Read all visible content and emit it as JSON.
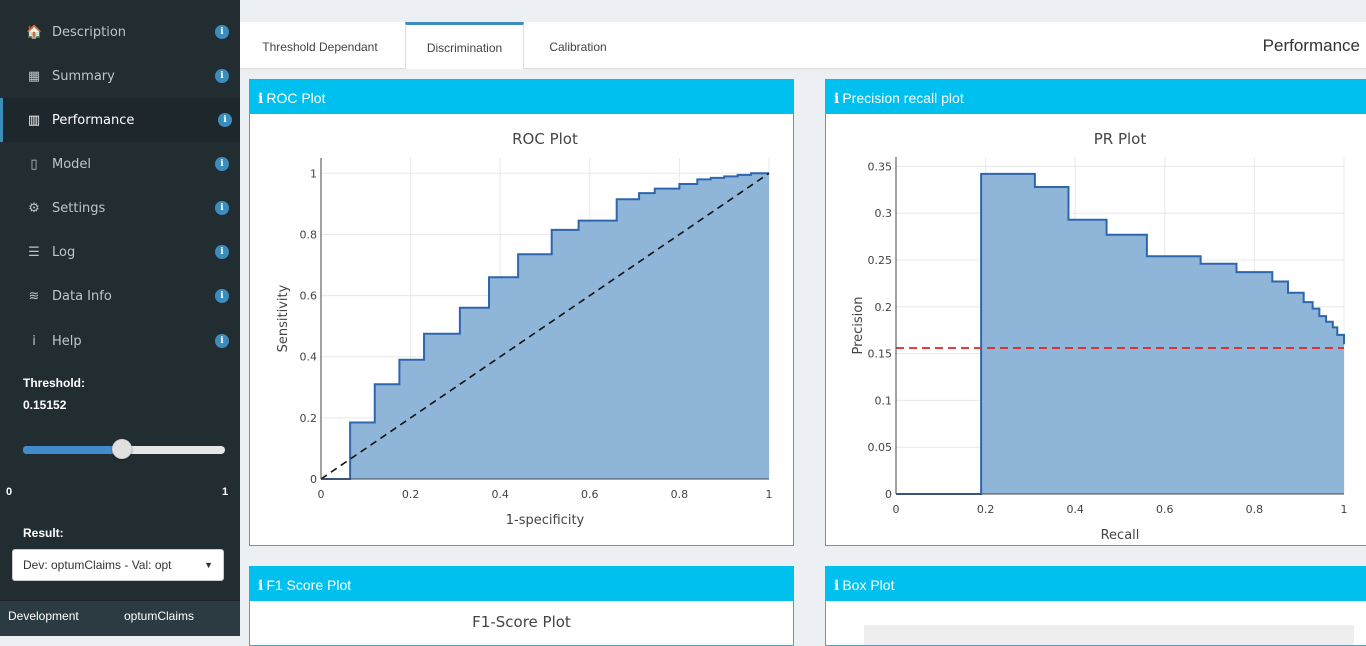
{
  "sidebar": {
    "items": [
      {
        "label": "Description",
        "icon": "home-icon",
        "glyph": "🏠"
      },
      {
        "label": "Summary",
        "icon": "table-icon",
        "glyph": "▦"
      },
      {
        "label": "Performance",
        "icon": "bar-chart-icon",
        "glyph": "▥"
      },
      {
        "label": "Model",
        "icon": "clipboard-icon",
        "glyph": "▯"
      },
      {
        "label": "Settings",
        "icon": "gear-icon",
        "glyph": "⚙"
      },
      {
        "label": "Log",
        "icon": "list-icon",
        "glyph": "☰"
      },
      {
        "label": "Data Info",
        "icon": "database-icon",
        "glyph": "≋"
      },
      {
        "label": "Help",
        "icon": "info-icon",
        "glyph": "i"
      }
    ],
    "info_glyph": "i",
    "threshold_label": "Threshold:",
    "threshold_value": "0.15152",
    "slider": {
      "min": "0",
      "max": "1",
      "value_fraction": 0.49
    },
    "result_label": "Result:",
    "result_select_value": "Dev: optumClaims - Val: opt",
    "bottom": {
      "left": "Development",
      "right": "optumClaims"
    }
  },
  "tabs": [
    {
      "label": "Threshold Dependant"
    },
    {
      "label": "Discrimination"
    },
    {
      "label": "Calibration"
    }
  ],
  "page_title": "Performance",
  "boxes": {
    "roc": {
      "header": "ROC Plot",
      "icon": "info-icon",
      "icon_glyph": "i"
    },
    "pr": {
      "header": "Precision recall plot",
      "icon": "info-icon",
      "icon_glyph": "i"
    },
    "f1": {
      "header": "F1 Score Plot",
      "icon": "info-icon",
      "icon_glyph": "i"
    },
    "boxplot": {
      "header": "Box Plot",
      "icon": "info-icon",
      "icon_glyph": "i"
    }
  },
  "f1_title": "F1-Score Plot",
  "colors": {
    "accent": "#00c0ef",
    "fill": "#8fb6d8",
    "line": "#2e66ad",
    "reference_red": "#e62222"
  },
  "chart_data": [
    {
      "type": "area",
      "title": "ROC Plot",
      "xlabel": "1-specificity",
      "ylabel": "Sensitivity",
      "xlim": [
        0,
        1
      ],
      "ylim": [
        0,
        1.05
      ],
      "xticks": [
        "0",
        "0.2",
        "0.4",
        "0.6",
        "0.8",
        "1"
      ],
      "yticks": [
        "0",
        "0.2",
        "0.4",
        "0.6",
        "0.8",
        "1"
      ],
      "grid": true,
      "diagonal": true,
      "x": [
        0,
        0.065,
        0.065,
        0.12,
        0.12,
        0.175,
        0.175,
        0.23,
        0.23,
        0.31,
        0.31,
        0.375,
        0.375,
        0.44,
        0.44,
        0.515,
        0.515,
        0.575,
        0.575,
        0.66,
        0.66,
        0.71,
        0.71,
        0.745,
        0.745,
        0.8,
        0.8,
        0.84,
        0.84,
        0.87,
        0.87,
        0.9,
        0.9,
        0.93,
        0.93,
        0.96,
        0.96,
        1
      ],
      "y": [
        0,
        0,
        0.185,
        0.185,
        0.31,
        0.31,
        0.39,
        0.39,
        0.475,
        0.475,
        0.56,
        0.56,
        0.66,
        0.66,
        0.735,
        0.735,
        0.815,
        0.815,
        0.845,
        0.845,
        0.915,
        0.915,
        0.935,
        0.935,
        0.95,
        0.95,
        0.965,
        0.965,
        0.98,
        0.98,
        0.985,
        0.985,
        0.99,
        0.99,
        0.995,
        0.995,
        1.0,
        1.0
      ]
    },
    {
      "type": "area",
      "title": "PR Plot",
      "xlabel": "Recall",
      "ylabel": "Precision",
      "xlim": [
        0,
        1
      ],
      "ylim": [
        0,
        0.36
      ],
      "xticks": [
        "0",
        "0.2",
        "0.4",
        "0.6",
        "0.8",
        "1"
      ],
      "yticks": [
        "0",
        "0.05",
        "0.1",
        "0.15",
        "0.2",
        "0.25",
        "0.3",
        "0.35"
      ],
      "grid": true,
      "reference_line_y": 0.156,
      "x": [
        0,
        0.19,
        0.19,
        0.31,
        0.31,
        0.385,
        0.385,
        0.47,
        0.47,
        0.56,
        0.56,
        0.68,
        0.68,
        0.76,
        0.76,
        0.84,
        0.84,
        0.875,
        0.875,
        0.91,
        0.91,
        0.93,
        0.93,
        0.945,
        0.945,
        0.96,
        0.96,
        0.975,
        0.975,
        0.985,
        0.985,
        1.0,
        1.0
      ],
      "y": [
        0,
        0,
        0.342,
        0.342,
        0.328,
        0.328,
        0.293,
        0.293,
        0.277,
        0.277,
        0.254,
        0.254,
        0.246,
        0.246,
        0.237,
        0.237,
        0.227,
        0.227,
        0.215,
        0.215,
        0.205,
        0.205,
        0.198,
        0.198,
        0.19,
        0.19,
        0.184,
        0.184,
        0.178,
        0.178,
        0.17,
        0.17,
        0.16
      ]
    }
  ]
}
